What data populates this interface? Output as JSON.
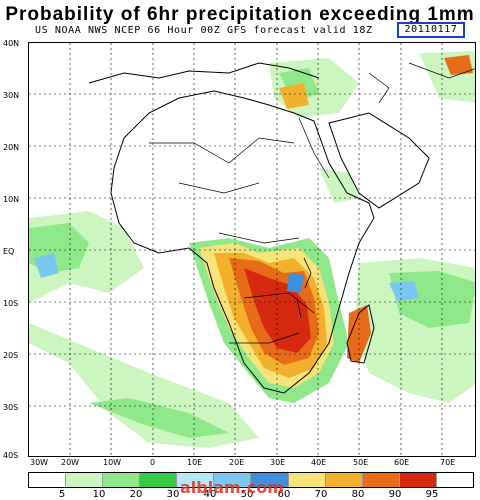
{
  "title": "Probability of 6hr precipitation exceeding 1mm",
  "subtitle": "US NOAA NWS NCEP 66 Hour 00Z GFS forecast valid 18Z",
  "valid_date": "20110117",
  "lat_labels": [
    "40N",
    "30N",
    "20N",
    "10N",
    "EQ",
    "10S",
    "20S",
    "30S",
    "40S"
  ],
  "lon_labels": [
    "30W",
    "20W",
    "10W",
    "0",
    "10E",
    "20E",
    "30E",
    "40E",
    "50E",
    "60E",
    "70E"
  ],
  "colorbar": {
    "labels": [
      "5",
      "10",
      "20",
      "30",
      "40",
      "50",
      "60",
      "70",
      "80",
      "90",
      "95"
    ],
    "colors": [
      "#ffffff",
      "#cdf5c0",
      "#8fe88a",
      "#33cc44",
      "#b8e8f8",
      "#7ac8f0",
      "#3f8fe0",
      "#f6e47a",
      "#f3b02c",
      "#e86b1a",
      "#d62a10",
      "#ffffff"
    ]
  },
  "watermark": "alblam.com"
}
